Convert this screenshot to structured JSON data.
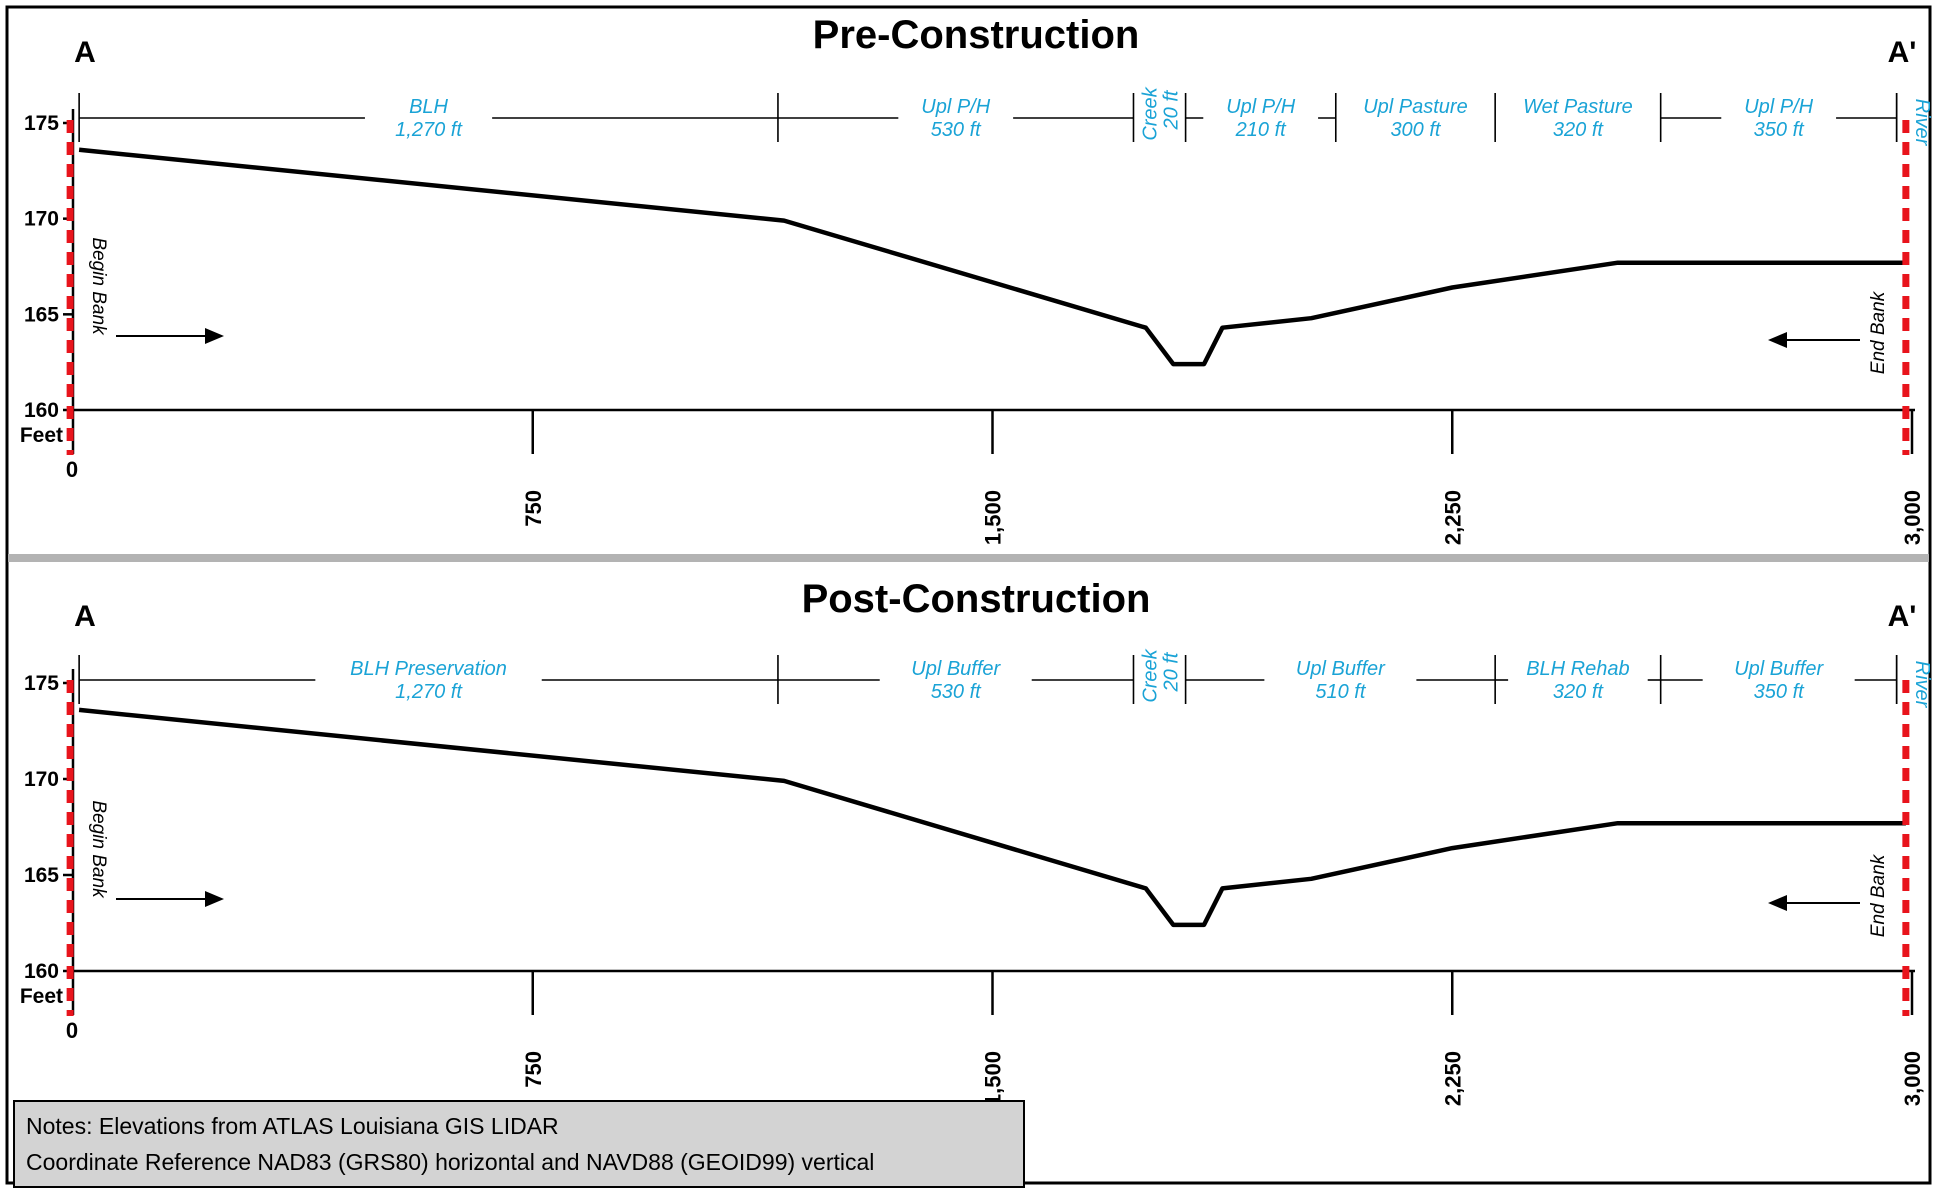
{
  "panels": [
    {
      "title": "Pre-Construction",
      "corner_left": "A",
      "corner_right": "A'",
      "begin_label": "Begin Bank",
      "end_label": "End Bank",
      "unit_label": "Feet",
      "segments": [
        {
          "name": "BLH",
          "length": "1,270 ft",
          "from": 10,
          "to": 1150
        },
        {
          "name": "Upl P/H",
          "length": "530 ft",
          "from": 1150,
          "to": 1730
        },
        {
          "name": "Creek",
          "length": "20 ft",
          "from": 1730,
          "to": 1815,
          "vertical": true
        },
        {
          "name": "Upl P/H",
          "length": "210 ft",
          "from": 1815,
          "to": 2060
        },
        {
          "name": "Upl Pasture",
          "length": "300 ft",
          "from": 2060,
          "to": 2320
        },
        {
          "name": "Wet Pasture",
          "length": "320 ft",
          "from": 2320,
          "to": 2590
        },
        {
          "name": "Upl P/H",
          "length": "350 ft",
          "from": 2590,
          "to": 2975
        },
        {
          "name": "River",
          "length": "",
          "from": 2975,
          "to": 3000,
          "vertical": true
        }
      ]
    },
    {
      "title": "Post-Construction",
      "corner_left": "A",
      "corner_right": "A'",
      "begin_label": "Begin Bank",
      "end_label": "End Bank",
      "unit_label": "Feet",
      "segments": [
        {
          "name": "BLH Preservation",
          "length": "1,270 ft",
          "from": 10,
          "to": 1150
        },
        {
          "name": "Upl Buffer",
          "length": "530 ft",
          "from": 1150,
          "to": 1730
        },
        {
          "name": "Creek",
          "length": "20 ft",
          "from": 1730,
          "to": 1815,
          "vertical": true
        },
        {
          "name": "Upl Buffer",
          "length": "510 ft",
          "from": 1815,
          "to": 2320
        },
        {
          "name": "BLH Rehab",
          "length": "320 ft",
          "from": 2320,
          "to": 2590
        },
        {
          "name": "Upl Buffer",
          "length": "350 ft",
          "from": 2590,
          "to": 2975
        },
        {
          "name": "River",
          "length": "",
          "from": 2975,
          "to": 3000,
          "vertical": true
        }
      ]
    }
  ],
  "chart_data": {
    "type": "line",
    "x_ticks": [
      0,
      750,
      1500,
      2250,
      3000
    ],
    "x_tick_labels": [
      "0",
      "750",
      "1,500",
      "2,250",
      "3,000"
    ],
    "y_ticks": [
      160,
      165,
      170,
      175
    ],
    "y_tick_labels": [
      "160",
      "165",
      "170",
      "175"
    ],
    "xlim": [
      0,
      3000
    ],
    "ylim": [
      160,
      175
    ],
    "profile": {
      "x": [
        10,
        1160,
        1750,
        1795,
        1845,
        1875,
        2020,
        2250,
        2520,
        2990
      ],
      "y": [
        173.6,
        169.9,
        164.3,
        162.4,
        162.4,
        164.3,
        164.8,
        166.4,
        167.7,
        167.7
      ]
    },
    "begin_bank_x": 10,
    "end_bank_x": 2990
  },
  "notes": {
    "line1": "Notes: Elevations from ATLAS Louisiana GIS LIDAR",
    "line2": "Coordinate Reference NAD83 (GRS80) horizontal and NAVD88 (GEOID99) vertical"
  },
  "colors": {
    "segment_text": "#1aa3d6",
    "bank_line": "#e8141c",
    "divider": "#b3b3b3"
  }
}
